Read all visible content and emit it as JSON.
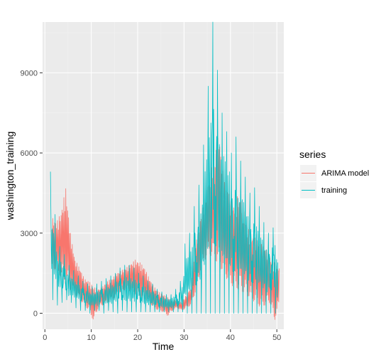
{
  "chart_data": {
    "type": "line",
    "title": "",
    "xlabel": "Time",
    "ylabel": "washington_training",
    "xlim": [
      -0.5,
      51.5
    ],
    "ylim": [
      -600,
      10900
    ],
    "x_ticks": [
      0,
      10,
      20,
      30,
      40,
      50
    ],
    "x_tick_labels": [
      "0",
      "10",
      "20",
      "30",
      "40",
      "50"
    ],
    "y_ticks": [
      0,
      3000,
      6000,
      9000
    ],
    "y_tick_labels": [
      "0",
      "3000",
      "6000",
      "9000"
    ],
    "grid": true,
    "legend": {
      "title": "series",
      "placement": "right"
    },
    "colors": {
      "panel": "#EBEBEB",
      "grid_major": "#FFFFFF",
      "grid_minor": "#F2F2F2"
    },
    "series": [
      {
        "name": "ARIMA model",
        "color": "#F8766D",
        "x": [
          1.5,
          2.5,
          3.5,
          4.5,
          5.5,
          6.5,
          7.5,
          8.5,
          9.5,
          10.5,
          11.5,
          12.5,
          13.5,
          14.5,
          15.5,
          16.5,
          17.5,
          18.5,
          19.5,
          20.5,
          21.5,
          22.5,
          23.5,
          24.5,
          25.5,
          26.5,
          27.5,
          28.5,
          29.5,
          30.5,
          31.5,
          32.5,
          33.5,
          34.5,
          35.5,
          36.5,
          37.5,
          38.5,
          39.5,
          40.5,
          41.5,
          42.5,
          43.5,
          44.5,
          45.5,
          46.5,
          47.5,
          48.5,
          49.5,
          50.5
        ],
        "low": [
          1500,
          1700,
          1300,
          1100,
          900,
          700,
          500,
          300,
          100,
          -300,
          200,
          300,
          400,
          500,
          700,
          800,
          900,
          800,
          700,
          600,
          500,
          400,
          200,
          100,
          50,
          -100,
          100,
          200,
          100,
          200,
          300,
          800,
          1500,
          2000,
          2200,
          2000,
          1800,
          1500,
          1200,
          1000,
          900,
          800,
          700,
          500,
          400,
          200,
          300,
          400,
          -300,
          300
        ],
        "high": [
          3600,
          3400,
          3800,
          4700,
          3000,
          2000,
          1700,
          1300,
          1200,
          1000,
          900,
          1000,
          1200,
          1300,
          1500,
          1600,
          1700,
          1850,
          2000,
          1900,
          1700,
          1300,
          1000,
          800,
          700,
          600,
          500,
          500,
          400,
          700,
          1000,
          2600,
          3500,
          4300,
          5300,
          5700,
          6800,
          5000,
          4600,
          4000,
          4400,
          4200,
          3300,
          2900,
          2800,
          2600,
          2500,
          2100,
          1900,
          1700
        ]
      },
      {
        "name": "training",
        "color": "#00BFC4",
        "x": [
          1.2,
          1.7,
          2.2,
          2.7,
          3.2,
          3.7,
          4.2,
          4.7,
          5.2,
          5.7,
          6.2,
          6.7,
          7.2,
          7.7,
          8.2,
          8.7,
          9.2,
          9.7,
          10.2,
          10.7,
          11.2,
          11.7,
          12.2,
          12.7,
          13.2,
          13.7,
          14.2,
          14.7,
          15.2,
          15.7,
          16.2,
          16.7,
          17.2,
          17.7,
          18.2,
          18.7,
          19.2,
          19.7,
          20.2,
          20.7,
          21.2,
          21.7,
          22.2,
          22.7,
          23.2,
          23.7,
          24.2,
          24.7,
          25.2,
          25.7,
          26.2,
          26.7,
          27.2,
          27.7,
          28.2,
          28.7,
          29.2,
          29.7,
          30.2,
          30.7,
          31.2,
          31.7,
          32.2,
          32.7,
          33.2,
          33.7,
          34.2,
          34.7,
          35.2,
          35.7,
          36.2,
          36.7,
          37.2,
          37.7,
          38.2,
          38.7,
          39.2,
          39.7,
          40.2,
          40.7,
          41.2,
          41.7,
          42.2,
          42.7,
          43.2,
          43.7,
          44.2,
          44.7,
          45.2,
          45.7,
          46.2,
          46.7,
          47.2,
          47.7,
          48.2,
          48.7,
          49.2,
          49.7,
          50.2
        ],
        "low": [
          600,
          500,
          700,
          300,
          500,
          400,
          300,
          500,
          200,
          400,
          300,
          200,
          300,
          100,
          200,
          100,
          150,
          0,
          50,
          100,
          0,
          100,
          50,
          0,
          50,
          100,
          0,
          50,
          100,
          0,
          50,
          100,
          0,
          50,
          0,
          50,
          0,
          50,
          0,
          50,
          0,
          50,
          0,
          50,
          0,
          50,
          0,
          50,
          0,
          50,
          0,
          50,
          0,
          50,
          0,
          50,
          0,
          50,
          0,
          0,
          0,
          0,
          0,
          0,
          0,
          0,
          0,
          0,
          0,
          0,
          0,
          0,
          0,
          0,
          0,
          0,
          0,
          0,
          0,
          0,
          0,
          0,
          0,
          0,
          0,
          0,
          0,
          0,
          0,
          0,
          0,
          0,
          0,
          0,
          0,
          0,
          0,
          0,
          0
        ],
        "high": [
          5300,
          4100,
          3700,
          2700,
          2500,
          2400,
          2200,
          1900,
          1800,
          1700,
          1600,
          1500,
          1400,
          1300,
          1200,
          1100,
          1100,
          1050,
          1000,
          1000,
          1100,
          1100,
          1200,
          1200,
          1300,
          1300,
          1400,
          1400,
          1500,
          1600,
          1700,
          1700,
          1800,
          1800,
          1800,
          1700,
          1700,
          1600,
          1500,
          1500,
          1400,
          1300,
          1200,
          1100,
          1100,
          1000,
          900,
          900,
          800,
          800,
          700,
          700,
          700,
          800,
          900,
          1000,
          1200,
          1300,
          2600,
          2800,
          3000,
          3200,
          4000,
          4300,
          4800,
          5000,
          6300,
          7500,
          8500,
          9300,
          10900,
          9800,
          9100,
          8300,
          7500,
          8100,
          6800,
          7300,
          6000,
          6000,
          6600,
          5600,
          5700,
          5800,
          5100,
          4900,
          4500,
          4400,
          4700,
          4300,
          4000,
          3800,
          3400,
          3200,
          3000,
          3600,
          3200,
          3500,
          1900
        ]
      }
    ]
  }
}
